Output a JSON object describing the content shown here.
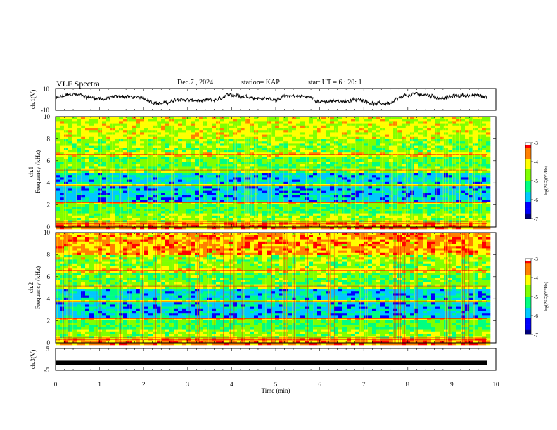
{
  "header": {
    "title": "VLF Spectra",
    "date": "Dec.7 , 2024",
    "station": "station= KAP",
    "start": "start UT = 6 : 20: 1"
  },
  "chart_data": [
    {
      "type": "line",
      "name": "ch1-waveform",
      "ylabel": "ch.1(V)",
      "ylim": [
        -10,
        10
      ],
      "ytick_labels": [
        "10",
        "-10"
      ],
      "xlim": [
        0,
        10
      ]
    },
    {
      "type": "heatmap",
      "name": "ch1-spectrogram",
      "ylabel": "ch.1\nFrequency (kHz)",
      "ylim": [
        0,
        10
      ],
      "yticks": [
        0,
        2,
        4,
        6,
        8,
        10
      ],
      "ytick_labels": [
        "0",
        "2",
        "4",
        "6",
        "8",
        "10"
      ],
      "xlim": [
        0,
        10
      ],
      "data_extent_min": 9.8,
      "colorbar": {
        "label": "log(PSD)(V²/Hz)",
        "range": [
          -7,
          -3
        ],
        "tick_labels": [
          "-3",
          "-4",
          "-5",
          "-6",
          "-7"
        ]
      }
    },
    {
      "type": "heatmap",
      "name": "ch2-spectrogram",
      "ylabel": "ch.2\nFrequency (kHz)",
      "ylim": [
        0,
        10
      ],
      "yticks": [
        0,
        2,
        4,
        6,
        8,
        10
      ],
      "ytick_labels": [
        "0",
        "2",
        "4",
        "6",
        "8",
        "10"
      ],
      "xlim": [
        0,
        10
      ],
      "data_extent_min": 9.8,
      "colorbar": {
        "label": "log(PSD)(V²/Hz)",
        "range": [
          -7,
          -3
        ],
        "tick_labels": [
          "-3",
          "-4",
          "-5",
          "-6",
          "-7"
        ]
      }
    },
    {
      "type": "line",
      "name": "ch3-waveform",
      "ylabel": "ch.3(V)",
      "ylim": [
        -5,
        5
      ],
      "ytick_labels": [
        "5",
        "-5"
      ],
      "values_constant": -1.6,
      "xlim": [
        0,
        10
      ],
      "xlabel": "Time (min)",
      "xticks": [
        0,
        1,
        2,
        3,
        4,
        5,
        6,
        7,
        8,
        9,
        10
      ],
      "xtick_labels": [
        "0",
        "1",
        "2",
        "3",
        "4",
        "5",
        "6",
        "7",
        "8",
        "9",
        "10"
      ]
    }
  ],
  "colors": {
    "palette": [
      "#000080",
      "#0000ff",
      "#00c8ff",
      "#00ff80",
      "#80ff00",
      "#ffff00",
      "#ff8000",
      "#ff0000",
      "#ffffff"
    ]
  }
}
